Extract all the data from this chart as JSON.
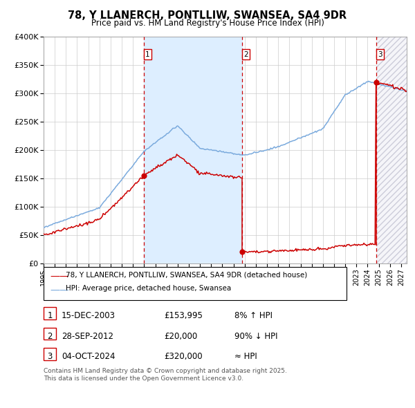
{
  "title": "78, Y LLANERCH, PONTLLIW, SWANSEA, SA4 9DR",
  "subtitle": "Price paid vs. HM Land Registry's House Price Index (HPI)",
  "ylim": [
    0,
    400000
  ],
  "yticks": [
    0,
    50000,
    100000,
    150000,
    200000,
    250000,
    300000,
    350000,
    400000
  ],
  "ytick_labels": [
    "£0",
    "£50K",
    "£100K",
    "£150K",
    "£200K",
    "£250K",
    "£300K",
    "£350K",
    "£400K"
  ],
  "xlim_start": 1995.0,
  "xlim_end": 2027.5,
  "xticks": [
    1995,
    1996,
    1997,
    1998,
    1999,
    2000,
    2001,
    2002,
    2003,
    2004,
    2005,
    2006,
    2007,
    2008,
    2009,
    2010,
    2011,
    2012,
    2013,
    2014,
    2015,
    2016,
    2017,
    2018,
    2019,
    2020,
    2021,
    2022,
    2023,
    2024,
    2025,
    2026,
    2027
  ],
  "transaction1_date": 2003.958,
  "transaction1_price": 153995,
  "transaction2_date": 2012.747,
  "transaction2_price": 20000,
  "transaction3_date": 2024.753,
  "transaction3_price": 320000,
  "legend_red": "78, Y LLANERCH, PONTLLIW, SWANSEA, SA4 9DR (detached house)",
  "legend_blue": "HPI: Average price, detached house, Swansea",
  "table_rows": [
    {
      "num": "1",
      "date": "15-DEC-2003",
      "price": "£153,995",
      "change": "8% ↑ HPI"
    },
    {
      "num": "2",
      "date": "28-SEP-2012",
      "price": "£20,000",
      "change": "90% ↓ HPI"
    },
    {
      "num": "3",
      "date": "04-OCT-2024",
      "price": "£320,000",
      "change": "≈ HPI"
    }
  ],
  "footer": "Contains HM Land Registry data © Crown copyright and database right 2025.\nThis data is licensed under the Open Government Licence v3.0.",
  "red_color": "#cc0000",
  "blue_color": "#7aaadd",
  "shade_color": "#ddeeff",
  "hatch_color": "#d8d8e8",
  "grid_color": "#cccccc",
  "bg_color": "#ffffff"
}
